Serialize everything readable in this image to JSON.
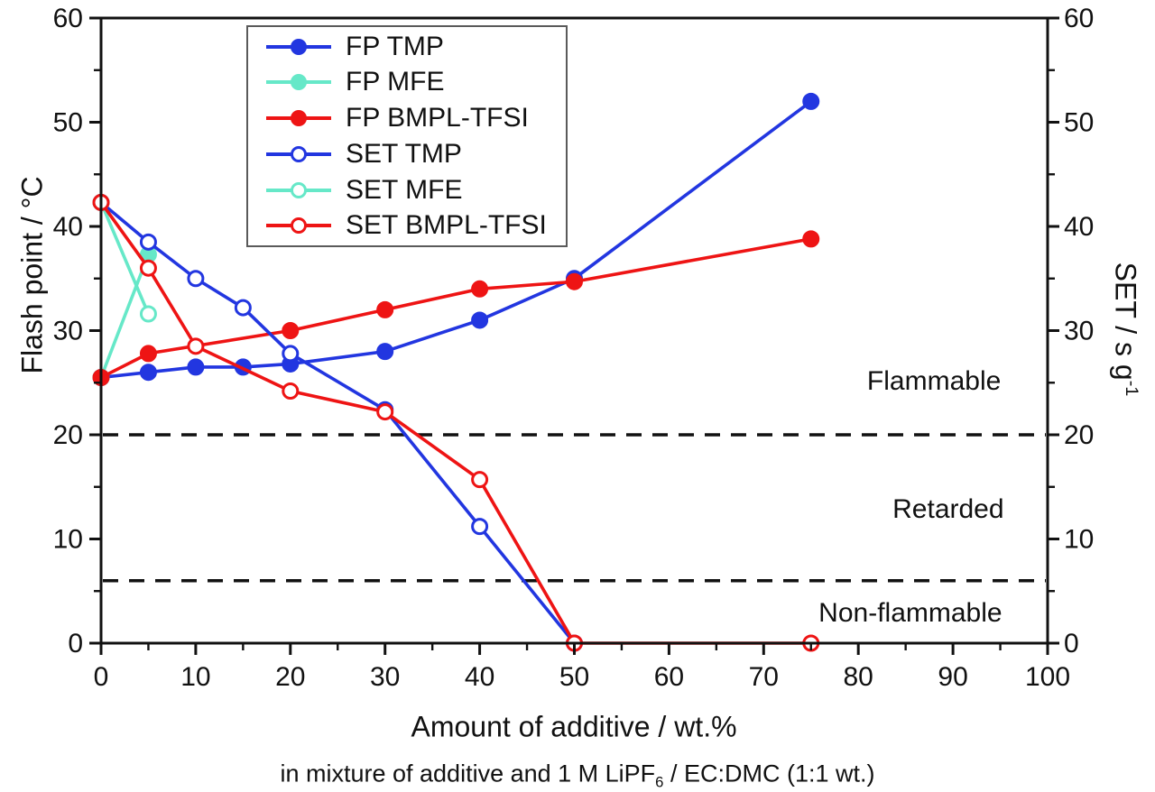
{
  "chart_data": {
    "type": "line",
    "axes": {
      "x": {
        "label": "Amount of additive / wt.%",
        "min": 0,
        "max": 100,
        "major_ticks": [
          0,
          10,
          20,
          30,
          40,
          50,
          60,
          70,
          80,
          90,
          100
        ],
        "minor_tick_step": 5
      },
      "y_left": {
        "label": "Flash point / °C",
        "min": 0,
        "max": 60,
        "major_ticks": [
          0,
          10,
          20,
          30,
          40,
          50,
          60
        ],
        "minor_tick_step": 5
      },
      "y_right": {
        "label": "SET / s g⁻¹",
        "label_base": "SET / s g",
        "label_sup": "-1",
        "min": 0,
        "max": 60,
        "major_ticks": [
          0,
          10,
          20,
          30,
          40,
          50,
          60
        ],
        "minor_tick_step": 5
      }
    },
    "subtitle": {
      "full": "in mixture of additive and 1 M LiPF6 / EC:DMC (1:1 wt.)",
      "pre": "in mixture of additive and 1 M LiPF",
      "sub": "6",
      "post": " / EC:DMC (1:1 wt.)"
    },
    "series": [
      {
        "name": "FP TMP",
        "axis": "left",
        "marker": "filled",
        "color": "#2236e0",
        "x": [
          0,
          5,
          10,
          15,
          20,
          30,
          40,
          50,
          75
        ],
        "y": [
          25.5,
          26,
          26.5,
          26.5,
          26.8,
          28,
          31,
          35,
          52
        ]
      },
      {
        "name": "FP MFE",
        "axis": "left",
        "marker": "filled",
        "color": "#66e8c8",
        "x": [
          0,
          5
        ],
        "y": [
          25.5,
          37.3
        ]
      },
      {
        "name": "FP BMPL-TFSI",
        "axis": "left",
        "marker": "filled",
        "color": "#ee1414",
        "x": [
          0,
          5,
          20,
          30,
          40,
          50,
          75
        ],
        "y": [
          25.5,
          27.8,
          30,
          32,
          34,
          34.7,
          38.8
        ]
      },
      {
        "name": "SET TMP",
        "axis": "right",
        "marker": "open",
        "color": "#2236e0",
        "x": [
          0,
          5,
          10,
          15,
          20,
          30,
          40,
          50
        ],
        "y": [
          42.3,
          38.5,
          35,
          32.2,
          27.8,
          22.4,
          11.2,
          0
        ]
      },
      {
        "name": "SET MFE",
        "axis": "right",
        "marker": "open",
        "color": "#66e8c8",
        "x": [
          0,
          5
        ],
        "y": [
          42.3,
          31.6
        ]
      },
      {
        "name": "SET BMPL-TFSI",
        "axis": "right",
        "marker": "open",
        "color": "#ee1414",
        "x": [
          0,
          5,
          10,
          20,
          30,
          40,
          50,
          75
        ],
        "y": [
          42.3,
          36,
          28.5,
          24.2,
          22.2,
          15.7,
          0,
          0
        ]
      }
    ],
    "threshold_lines": {
      "y_values": [
        20,
        6
      ],
      "style": "dashed",
      "color": "#111111"
    },
    "annotations": [
      {
        "text": "Flammable",
        "x": 88,
        "y": 25.1
      },
      {
        "text": "Retarded",
        "x": 89.5,
        "y": 12.8
      },
      {
        "text": "Non-flammable",
        "x": 85.5,
        "y": 2.9
      }
    ],
    "legend": {
      "position": "top-left-inside",
      "items": [
        {
          "label": "FP TMP",
          "color": "#2236e0",
          "marker": "filled"
        },
        {
          "label": "FP MFE",
          "color": "#66e8c8",
          "marker": "filled"
        },
        {
          "label": "FP BMPL-TFSI",
          "color": "#ee1414",
          "marker": "filled"
        },
        {
          "label": "SET TMP",
          "color": "#2236e0",
          "marker": "open"
        },
        {
          "label": "SET MFE",
          "color": "#66e8c8",
          "marker": "open"
        },
        {
          "label": "SET BMPL-TFSI",
          "color": "#ee1414",
          "marker": "open"
        }
      ]
    }
  }
}
